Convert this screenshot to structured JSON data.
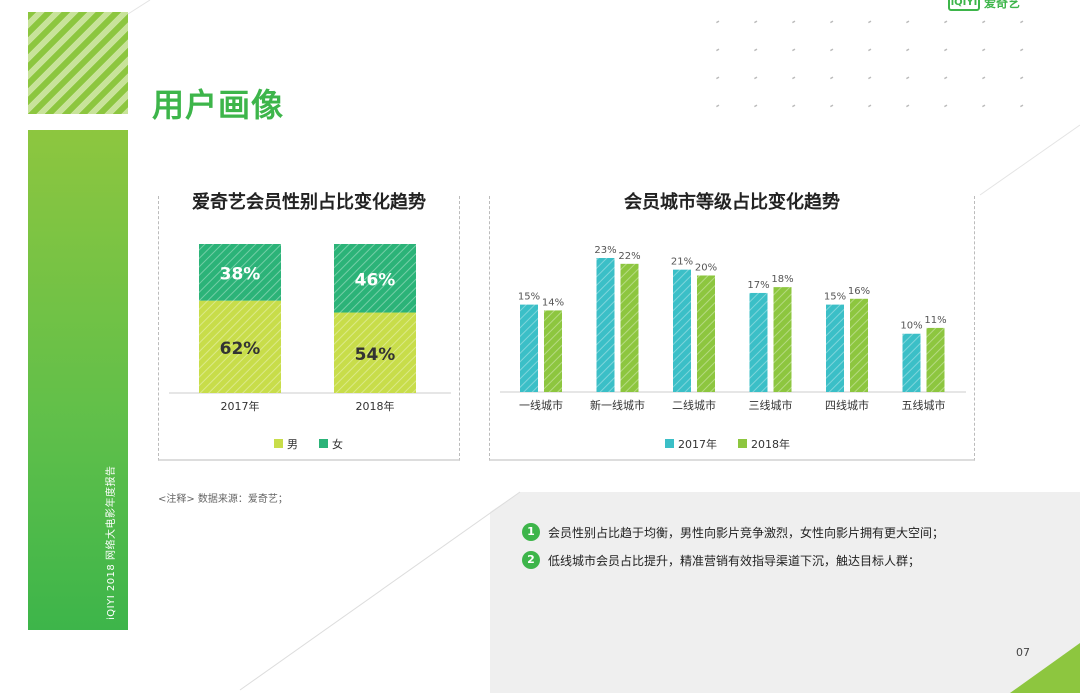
{
  "header": {
    "title": "用户画像",
    "logo_box": "iQIYI",
    "logo_text": "爱奇艺"
  },
  "side": {
    "label": "iQIYI 2018 网络大电影年度报告"
  },
  "chart_data": [
    {
      "type": "bar",
      "stacked": true,
      "title": "爱奇艺会员性别占比变化趋势",
      "categories": [
        "2017年",
        "2018年"
      ],
      "series": [
        {
          "name": "男",
          "values": [
            62,
            54
          ],
          "labels": [
            "62%",
            "54%"
          ],
          "color": "#c8dd4a"
        },
        {
          "name": "女",
          "values": [
            38,
            46
          ],
          "labels": [
            "38%",
            "46%"
          ],
          "color": "#2bb378"
        }
      ],
      "ylim": [
        0,
        100
      ],
      "legend": "bottom"
    },
    {
      "type": "bar",
      "title": "会员城市等级占比变化趋势",
      "categories": [
        "一线城市",
        "新一线城市",
        "二线城市",
        "三线城市",
        "四线城市",
        "五线城市"
      ],
      "series": [
        {
          "name": "2017年",
          "values": [
            15,
            23,
            21,
            17,
            15,
            10
          ],
          "labels": [
            "15%",
            "23%",
            "21%",
            "17%",
            "15%",
            "10%"
          ],
          "color": "#3bbfc7"
        },
        {
          "name": "2018年",
          "values": [
            14,
            22,
            20,
            18,
            16,
            11
          ],
          "labels": [
            "14%",
            "22%",
            "20%",
            "18%",
            "16%",
            "11%"
          ],
          "color": "#8dc63f"
        }
      ],
      "ylim": [
        0,
        25
      ],
      "legend": "bottom"
    }
  ],
  "note": "<注释> 数据来源：爱奇艺；",
  "conclusions": [
    {
      "num": "1",
      "text": "会员性别占比趋于均衡，男性向影片竞争激烈，女性向影片拥有更大空间；"
    },
    {
      "num": "2",
      "text": "低线城市会员占比提升，精准营销有效指导渠道下沉，触达目标人群；"
    }
  ],
  "page_number": "07"
}
